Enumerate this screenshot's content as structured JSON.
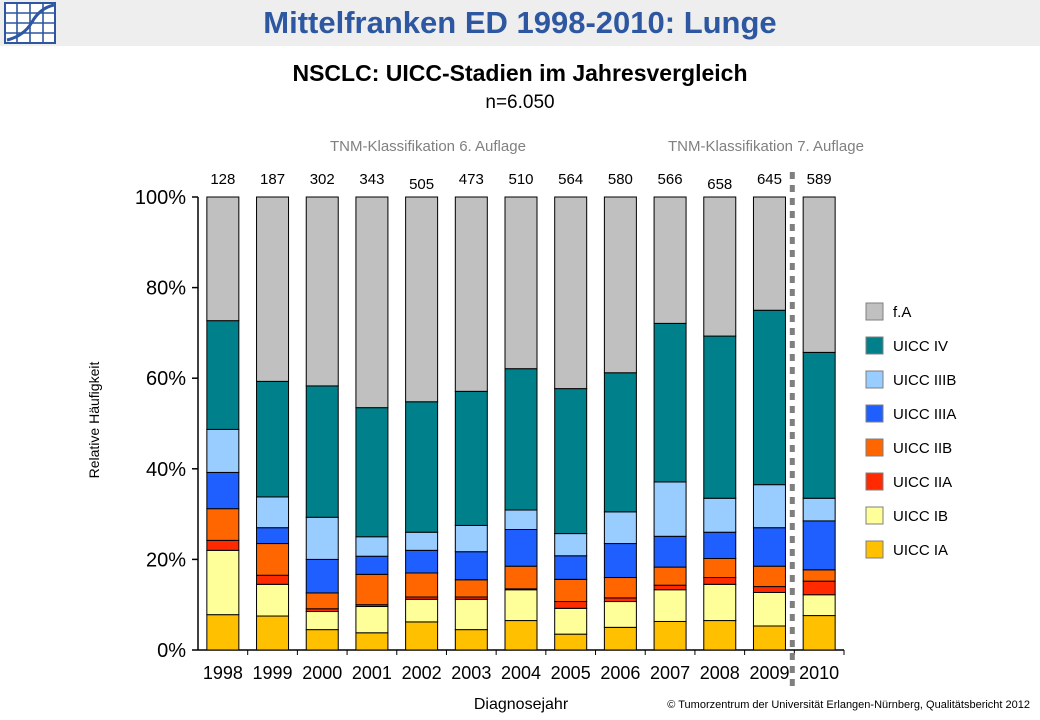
{
  "header": {
    "title": "Mittelfranken ED 1998-2010: Lunge",
    "logo_icon": "chart-grid-logo"
  },
  "subtitle": "NSCLC: UICC-Stadien im Jahresvergleich",
  "n_label": "n=6.050",
  "classification": {
    "sixth": "TNM-Klassifikation 6. Auflage",
    "seventh": "TNM-Klassifikation 7. Auflage"
  },
  "copyright": "© Tumorzentrum  der Universität Erlangen-Nürnberg,  Qualitätsbericht 2012",
  "chart_data": {
    "type": "bar",
    "stacked": true,
    "normalized": true,
    "xlabel": "Diagnosejahr",
    "ylabel": "Relative Häufigkeit",
    "ylim": [
      0,
      100
    ],
    "yticks": [
      "0%",
      "20%",
      "40%",
      "60%",
      "80%",
      "100%"
    ],
    "grid": false,
    "legend_position": "right",
    "categories": [
      "1998",
      "1999",
      "2000",
      "2001",
      "2002",
      "2003",
      "2004",
      "2005",
      "2006",
      "2007",
      "2008",
      "2009",
      "2010"
    ],
    "counts": [
      "128",
      "187",
      "302",
      "343",
      "505",
      "473",
      "510",
      "564",
      "580",
      "566",
      "658",
      "645",
      "589"
    ],
    "divider_between": [
      "2009",
      "2010"
    ],
    "series": [
      {
        "name": "UICC IA",
        "color": "#ffc000",
        "values": [
          7.8,
          7.5,
          4.5,
          3.8,
          6.2,
          4.5,
          6.5,
          3.5,
          5.0,
          6.3,
          6.5,
          5.3,
          7.6
        ]
      },
      {
        "name": "UICC IB",
        "color": "#ffff99",
        "values": [
          14.2,
          7.0,
          4.0,
          5.8,
          5.0,
          6.7,
          6.8,
          5.7,
          5.7,
          7.0,
          8.0,
          7.4,
          4.6
        ]
      },
      {
        "name": "UICC IIA",
        "color": "#ff2a00",
        "values": [
          2.2,
          2.0,
          0.6,
          0.4,
          0.5,
          0.5,
          0.2,
          1.5,
          0.8,
          1.0,
          1.5,
          1.3,
          3.0
        ]
      },
      {
        "name": "UICC IIB",
        "color": "#ff6600",
        "values": [
          7.0,
          7.0,
          3.5,
          6.7,
          5.3,
          3.8,
          5.0,
          4.9,
          4.5,
          4.0,
          4.2,
          4.5,
          2.5
        ]
      },
      {
        "name": "UICC IIIA",
        "color": "#1f5fff",
        "values": [
          8.0,
          3.5,
          7.4,
          4.0,
          5.0,
          6.2,
          8.1,
          5.2,
          7.5,
          6.8,
          5.8,
          8.5,
          10.8
        ]
      },
      {
        "name": "UICC IIIB",
        "color": "#99ccff",
        "values": [
          9.5,
          6.8,
          9.3,
          4.3,
          4.0,
          5.8,
          4.3,
          4.9,
          7.0,
          12.0,
          7.5,
          9.5,
          5.0
        ]
      },
      {
        "name": "UICC IV",
        "color": "#00808a",
        "values": [
          24.0,
          25.5,
          29.0,
          28.5,
          28.8,
          29.6,
          31.2,
          32.0,
          30.7,
          35.0,
          35.8,
          38.5,
          32.2
        ]
      },
      {
        "name": "f.A",
        "color": "#c0c0c0",
        "values": [
          27.3,
          40.7,
          41.7,
          46.5,
          45.2,
          42.9,
          37.9,
          42.3,
          38.8,
          27.9,
          30.7,
          25.0,
          34.3
        ]
      }
    ]
  }
}
